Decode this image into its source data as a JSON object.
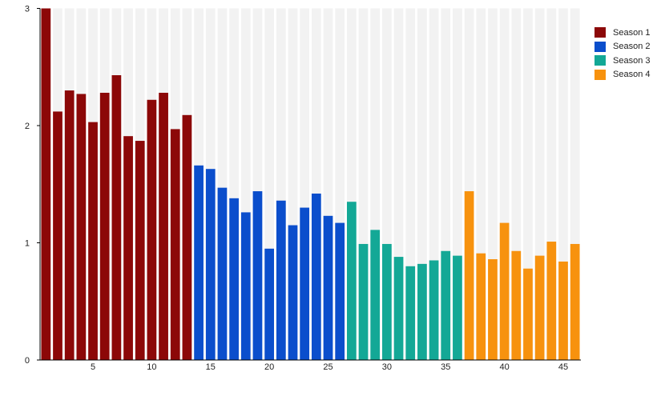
{
  "chart_data": {
    "type": "bar",
    "title": "",
    "xlabel": "",
    "ylabel": "",
    "ylim": [
      0,
      3
    ],
    "xlim": [
      1,
      46
    ],
    "grid": false,
    "legend_position": "right",
    "yticks": [
      "0",
      "1",
      "2",
      "3"
    ],
    "xticks": [
      "5",
      "10",
      "15",
      "20",
      "25",
      "30",
      "35",
      "40",
      "45"
    ],
    "series": [
      {
        "name": "Season 1",
        "color": "#8c0808",
        "x": [
          1,
          2,
          3,
          4,
          5,
          6,
          7,
          8,
          9,
          10,
          11,
          12,
          13
        ],
        "values": [
          3.0,
          2.12,
          2.3,
          2.27,
          2.03,
          2.28,
          2.43,
          1.91,
          1.87,
          2.22,
          2.28,
          1.97,
          2.09
        ]
      },
      {
        "name": "Season 2",
        "color": "#0b4ecc",
        "x": [
          14,
          15,
          16,
          17,
          18,
          19,
          20,
          21,
          22,
          23,
          24,
          25,
          26
        ],
        "values": [
          1.66,
          1.63,
          1.47,
          1.38,
          1.26,
          1.44,
          0.95,
          1.36,
          1.15,
          1.3,
          1.42,
          1.23,
          1.17
        ]
      },
      {
        "name": "Season 3",
        "color": "#13a896",
        "x": [
          27,
          28,
          29,
          30,
          31,
          32,
          33,
          34,
          35,
          36
        ],
        "values": [
          1.35,
          0.99,
          1.11,
          0.99,
          0.88,
          0.8,
          0.82,
          0.85,
          0.93,
          0.89
        ]
      },
      {
        "name": "Season 4",
        "color": "#f7920e",
        "x": [
          37,
          38,
          39,
          40,
          41,
          42,
          43,
          44,
          45,
          46
        ],
        "values": [
          1.44,
          0.91,
          0.86,
          1.17,
          0.93,
          0.78,
          0.89,
          1.01,
          0.84,
          0.99
        ]
      }
    ]
  }
}
